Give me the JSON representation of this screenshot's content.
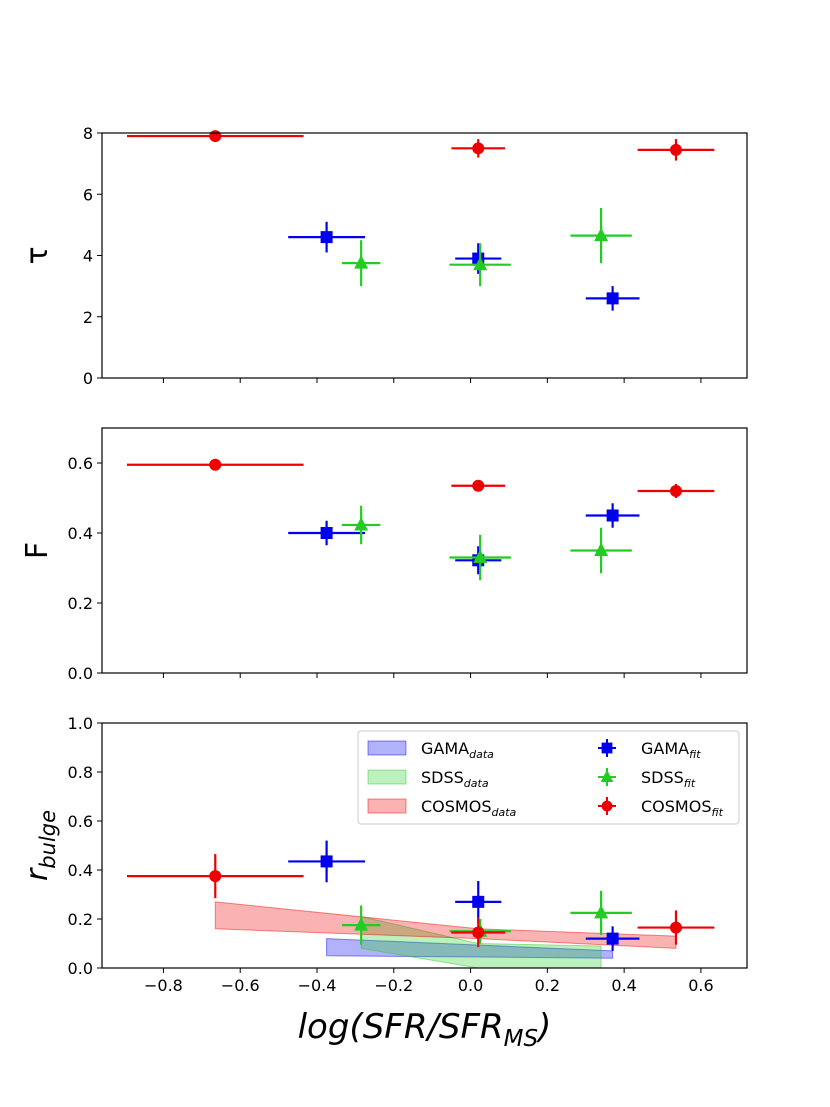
{
  "chart_data": [
    {
      "type": "scatter",
      "panel": "tau",
      "ylabel": "τ",
      "xlim": [
        -0.96,
        0.72
      ],
      "ylim": [
        0,
        8
      ],
      "yticks": [
        0,
        2,
        4,
        6,
        8
      ],
      "ytick_labels": [
        "0",
        "2",
        "4",
        "6",
        "8"
      ],
      "series": [
        {
          "name": "GAMA_fit",
          "color": "#0000ee",
          "marker": "square",
          "points": [
            {
              "x": -0.375,
              "y": 4.6,
              "xerr": 0.1,
              "yerr": 0.5
            },
            {
              "x": 0.02,
              "y": 3.9,
              "xerr": 0.06,
              "yerr": 0.5
            },
            {
              "x": 0.37,
              "y": 2.6,
              "xerr": 0.07,
              "yerr": 0.4
            }
          ]
        },
        {
          "name": "SDSS_fit",
          "color": "#22cc22",
          "marker": "triangle",
          "points": [
            {
              "x": -0.285,
              "y": 3.75,
              "xerr": 0.05,
              "yerr": 0.75
            },
            {
              "x": 0.025,
              "y": 3.7,
              "xerr": 0.08,
              "yerr": 0.7
            },
            {
              "x": 0.34,
              "y": 4.65,
              "xerr": 0.08,
              "yerr": 0.9
            }
          ]
        },
        {
          "name": "COSMOS_fit",
          "color": "#ee0000",
          "marker": "circle",
          "points": [
            {
              "x": -0.665,
              "y": 7.9,
              "xerr": 0.23,
              "yerr": 0.15
            },
            {
              "x": 0.02,
              "y": 7.5,
              "xerr": 0.07,
              "yerr": 0.3
            },
            {
              "x": 0.535,
              "y": 7.45,
              "xerr": 0.1,
              "yerr": 0.35
            }
          ]
        }
      ]
    },
    {
      "type": "scatter",
      "panel": "F",
      "ylabel": "F",
      "xlim": [
        -0.96,
        0.72
      ],
      "ylim": [
        0,
        0.7
      ],
      "yticks": [
        0,
        0.2,
        0.4,
        0.6
      ],
      "ytick_labels": [
        "0.0",
        "0.2",
        "0.4",
        "0.6"
      ],
      "series": [
        {
          "name": "GAMA_fit",
          "color": "#0000ee",
          "marker": "square",
          "points": [
            {
              "x": -0.375,
              "y": 0.4,
              "xerr": 0.1,
              "yerr": 0.035
            },
            {
              "x": 0.02,
              "y": 0.322,
              "xerr": 0.06,
              "yerr": 0.04
            },
            {
              "x": 0.37,
              "y": 0.45,
              "xerr": 0.07,
              "yerr": 0.035
            }
          ]
        },
        {
          "name": "SDSS_fit",
          "color": "#22cc22",
          "marker": "triangle",
          "points": [
            {
              "x": -0.285,
              "y": 0.423,
              "xerr": 0.05,
              "yerr": 0.055
            },
            {
              "x": 0.025,
              "y": 0.33,
              "xerr": 0.08,
              "yerr": 0.065
            },
            {
              "x": 0.34,
              "y": 0.35,
              "xerr": 0.08,
              "yerr": 0.065
            }
          ]
        },
        {
          "name": "COSMOS_fit",
          "color": "#ee0000",
          "marker": "circle",
          "points": [
            {
              "x": -0.665,
              "y": 0.595,
              "xerr": 0.23,
              "yerr": 0.01
            },
            {
              "x": 0.02,
              "y": 0.535,
              "xerr": 0.07,
              "yerr": 0.015
            },
            {
              "x": 0.535,
              "y": 0.52,
              "xerr": 0.1,
              "yerr": 0.02
            }
          ]
        }
      ]
    },
    {
      "type": "scatter",
      "panel": "r_bulge",
      "ylabel": "r",
      "ylabel_sub": "bulge",
      "xlabel": "log(SFR/SFR",
      "xlabel_sub": "MS",
      "xlabel_end": ")",
      "xlim": [
        -0.96,
        0.72
      ],
      "ylim": [
        0,
        1.0
      ],
      "yticks": [
        0,
        0.2,
        0.4,
        0.6,
        0.8,
        1.0
      ],
      "ytick_labels": [
        "0.0",
        "0.2",
        "0.4",
        "0.6",
        "0.8",
        "1.0"
      ],
      "xticks": [
        -0.8,
        -0.6,
        -0.4,
        -0.2,
        0.0,
        0.2,
        0.4,
        0.6
      ],
      "xtick_labels": [
        "−0.8",
        "−0.6",
        "−0.4",
        "−0.2",
        "0.0",
        "0.2",
        "0.4",
        "0.6"
      ],
      "bands": [
        {
          "name": "GAMA_data",
          "color": "#0000ee",
          "x": [
            -0.375,
            0.37
          ],
          "lower": [
            0.05,
            0.04
          ],
          "upper": [
            0.12,
            0.07
          ]
        },
        {
          "name": "SDSS_data",
          "color": "#22cc22",
          "x": [
            -0.285,
            0.02,
            0.34
          ],
          "lower": [
            0.08,
            0.0,
            0.0
          ],
          "upper": [
            0.21,
            0.1,
            0.09
          ]
        },
        {
          "name": "COSMOS_data",
          "color": "#ee0000",
          "x": [
            -0.665,
            0.02,
            0.535
          ],
          "lower": [
            0.16,
            0.12,
            0.08
          ],
          "upper": [
            0.27,
            0.16,
            0.13
          ]
        }
      ],
      "series": [
        {
          "name": "GAMA_fit",
          "color": "#0000ee",
          "marker": "square",
          "points": [
            {
              "x": -0.375,
              "y": 0.435,
              "xerr": 0.1,
              "yerr": 0.085
            },
            {
              "x": 0.02,
              "y": 0.27,
              "xerr": 0.06,
              "yerr": 0.085
            },
            {
              "x": 0.37,
              "y": 0.12,
              "xerr": 0.07,
              "yerr": 0.05
            }
          ]
        },
        {
          "name": "SDSS_fit",
          "color": "#22cc22",
          "marker": "triangle",
          "points": [
            {
              "x": -0.285,
              "y": 0.175,
              "xerr": 0.05,
              "yerr": 0.08
            },
            {
              "x": 0.025,
              "y": 0.15,
              "xerr": 0.08,
              "yerr": 0.05
            },
            {
              "x": 0.34,
              "y": 0.225,
              "xerr": 0.08,
              "yerr": 0.09
            }
          ]
        },
        {
          "name": "COSMOS_fit",
          "color": "#ee0000",
          "marker": "circle",
          "points": [
            {
              "x": -0.665,
              "y": 0.375,
              "xerr": 0.23,
              "yerr": 0.09
            },
            {
              "x": 0.02,
              "y": 0.145,
              "xerr": 0.07,
              "yerr": 0.06
            },
            {
              "x": 0.535,
              "y": 0.165,
              "xerr": 0.1,
              "yerr": 0.07
            }
          ]
        }
      ],
      "legend": {
        "location": "upper-right",
        "entries": [
          {
            "kind": "band",
            "name": "GAMA",
            "sub": "data",
            "color": "#0000ee"
          },
          {
            "kind": "band",
            "name": "SDSS",
            "sub": "data",
            "color": "#22cc22"
          },
          {
            "kind": "band",
            "name": "COSMOS",
            "sub": "data",
            "color": "#ee0000"
          },
          {
            "kind": "marker",
            "name": "GAMA",
            "sub": "fit",
            "color": "#0000ee",
            "marker": "square"
          },
          {
            "kind": "marker",
            "name": "SDSS",
            "sub": "fit",
            "color": "#22cc22",
            "marker": "triangle"
          },
          {
            "kind": "marker",
            "name": "COSMOS",
            "sub": "fit",
            "color": "#ee0000",
            "marker": "circle"
          }
        ]
      }
    }
  ]
}
